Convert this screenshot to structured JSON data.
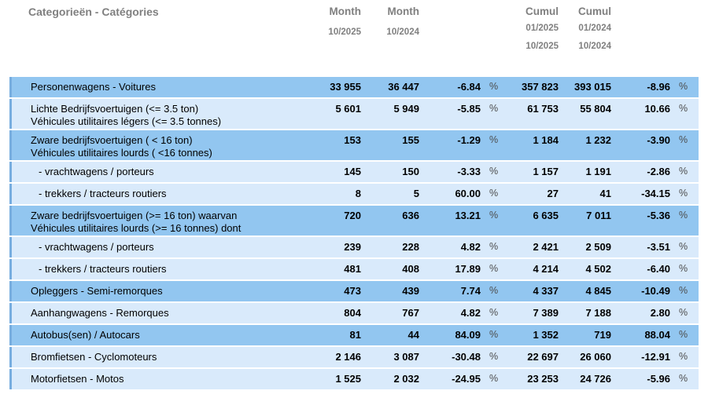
{
  "header": {
    "category_label": "Categorieën - Catégories",
    "columns": [
      {
        "title": "Month",
        "lines": [
          "10/2025"
        ]
      },
      {
        "title": "Month",
        "lines": [
          "10/2024"
        ]
      },
      {
        "title": "Cumul",
        "lines": [
          "01/2025",
          "10/2025"
        ]
      },
      {
        "title": "Cumul",
        "lines": [
          "01/2024",
          "10/2024"
        ]
      }
    ]
  },
  "table": {
    "pct_symbol": "%",
    "rows": [
      {
        "label_lines": [
          "Personenwagens - Voitures"
        ],
        "indent": false,
        "shade": "dark",
        "month_current": "33 955",
        "month_prev": "36 447",
        "month_pct": "-6.84",
        "cumul_current": "357 823",
        "cumul_prev": "393 015",
        "cumul_pct": "-8.96"
      },
      {
        "label_lines": [
          "Lichte Bedrijfsvoertuigen (<= 3.5 ton)",
          "Véhicules utilitaires légers (<= 3.5 tonnes)"
        ],
        "indent": false,
        "shade": "light",
        "month_current": "5 601",
        "month_prev": "5 949",
        "month_pct": "-5.85",
        "cumul_current": "61 753",
        "cumul_prev": "55 804",
        "cumul_pct": "10.66"
      },
      {
        "label_lines": [
          "Zware bedrijfsvoertuigen ( < 16 ton)",
          "Véhicules utilitaires lourds ( <16 tonnes)"
        ],
        "indent": false,
        "shade": "dark",
        "month_current": "153",
        "month_prev": "155",
        "month_pct": "-1.29",
        "cumul_current": "1 184",
        "cumul_prev": "1 232",
        "cumul_pct": "-3.90"
      },
      {
        "label_lines": [
          "- vrachtwagens / porteurs"
        ],
        "indent": true,
        "shade": "light",
        "month_current": "145",
        "month_prev": "150",
        "month_pct": "-3.33",
        "cumul_current": "1 157",
        "cumul_prev": "1 191",
        "cumul_pct": "-2.86"
      },
      {
        "label_lines": [
          "- trekkers / tracteurs routiers"
        ],
        "indent": true,
        "shade": "light",
        "month_current": "8",
        "month_prev": "5",
        "month_pct": "60.00",
        "cumul_current": "27",
        "cumul_prev": "41",
        "cumul_pct": "-34.15"
      },
      {
        "label_lines": [
          "Zware bedrijfsvoertuigen (>= 16 ton) waarvan",
          "Véhicules utilitaires lourds (>= 16 tonnes) dont"
        ],
        "indent": false,
        "shade": "dark",
        "month_current": "720",
        "month_prev": "636",
        "month_pct": "13.21",
        "cumul_current": "6 635",
        "cumul_prev": "7 011",
        "cumul_pct": "-5.36"
      },
      {
        "label_lines": [
          "- vrachtwagens / porteurs"
        ],
        "indent": true,
        "shade": "light",
        "month_current": "239",
        "month_prev": "228",
        "month_pct": "4.82",
        "cumul_current": "2 421",
        "cumul_prev": "2 509",
        "cumul_pct": "-3.51"
      },
      {
        "label_lines": [
          "- trekkers / tracteurs routiers"
        ],
        "indent": true,
        "shade": "light",
        "month_current": "481",
        "month_prev": "408",
        "month_pct": "17.89",
        "cumul_current": "4 214",
        "cumul_prev": "4 502",
        "cumul_pct": "-6.40"
      },
      {
        "label_lines": [
          "Opleggers - Semi-remorques"
        ],
        "indent": false,
        "shade": "dark",
        "month_current": "473",
        "month_prev": "439",
        "month_pct": "7.74",
        "cumul_current": "4 337",
        "cumul_prev": "4 845",
        "cumul_pct": "-10.49"
      },
      {
        "label_lines": [
          "Aanhangwagens - Remorques"
        ],
        "indent": false,
        "shade": "light",
        "month_current": "804",
        "month_prev": "767",
        "month_pct": "4.82",
        "cumul_current": "7 389",
        "cumul_prev": "7 188",
        "cumul_pct": "2.80"
      },
      {
        "label_lines": [
          "Autobus(sen) / Autocars"
        ],
        "indent": false,
        "shade": "dark",
        "month_current": "81",
        "month_prev": "44",
        "month_pct": "84.09",
        "cumul_current": "1 352",
        "cumul_prev": "719",
        "cumul_pct": "88.04"
      },
      {
        "label_lines": [
          "Bromfietsen - Cyclomoteurs"
        ],
        "indent": false,
        "shade": "light",
        "month_current": "2 146",
        "month_prev": "3 087",
        "month_pct": "-30.48",
        "cumul_current": "22 697",
        "cumul_prev": "26 060",
        "cumul_pct": "-12.91"
      },
      {
        "label_lines": [
          "Motorfietsen - Motos"
        ],
        "indent": false,
        "shade": "light",
        "month_current": "1 525",
        "month_prev": "2 032",
        "month_pct": "-24.95",
        "cumul_current": "23 253",
        "cumul_prev": "24 726",
        "cumul_pct": "-5.96"
      }
    ]
  },
  "colors": {
    "row_dark": "#92c6f0",
    "row_light": "#d9eafb",
    "left_border": "#77addf",
    "header_text": "#808080",
    "number_text": "#000000",
    "pct_symbol_text": "#4d4d4d"
  },
  "chart_data": {
    "type": "table",
    "title": "Categorieën - Catégories",
    "columns": [
      "Month 10/2025",
      "Month 10/2024",
      "Month % change",
      "Cumul 01/2025-10/2025",
      "Cumul 01/2024-10/2024",
      "Cumul % change"
    ],
    "categories": [
      "Personenwagens - Voitures",
      "Lichte Bedrijfsvoertuigen (<= 3.5 ton) / Véhicules utilitaires légers (<= 3.5 tonnes)",
      "Zware bedrijfsvoertuigen ( < 16 ton) / Véhicules utilitaires lourds ( <16 tonnes)",
      "- vrachtwagens / porteurs",
      "- trekkers / tracteurs routiers",
      "Zware bedrijfsvoertuigen (>= 16 ton) waarvan / Véhicules utilitaires lourds (>= 16 tonnes) dont",
      "- vrachtwagens / porteurs",
      "- trekkers / tracteurs routiers",
      "Opleggers - Semi-remorques",
      "Aanhangwagens - Remorques",
      "Autobus(sen) / Autocars",
      "Bromfietsen - Cyclomoteurs",
      "Motorfietsen - Motos"
    ],
    "values": [
      [
        33955,
        36447,
        -6.84,
        357823,
        393015,
        -8.96
      ],
      [
        5601,
        5949,
        -5.85,
        61753,
        55804,
        10.66
      ],
      [
        153,
        155,
        -1.29,
        1184,
        1232,
        -3.9
      ],
      [
        145,
        150,
        -3.33,
        1157,
        1191,
        -2.86
      ],
      [
        8,
        5,
        60.0,
        27,
        41,
        -34.15
      ],
      [
        720,
        636,
        13.21,
        6635,
        7011,
        -5.36
      ],
      [
        239,
        228,
        4.82,
        2421,
        2509,
        -3.51
      ],
      [
        481,
        408,
        17.89,
        4214,
        4502,
        -6.4
      ],
      [
        473,
        439,
        7.74,
        4337,
        4845,
        -10.49
      ],
      [
        804,
        767,
        4.82,
        7389,
        7188,
        2.8
      ],
      [
        81,
        44,
        84.09,
        1352,
        719,
        88.04
      ],
      [
        2146,
        3087,
        -30.48,
        22697,
        26060,
        -12.91
      ],
      [
        1525,
        2032,
        -24.95,
        23253,
        24726,
        -5.96
      ]
    ]
  }
}
